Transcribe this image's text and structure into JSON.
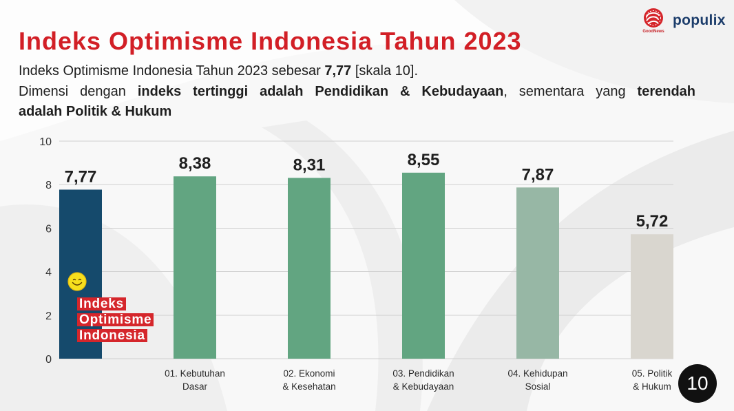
{
  "slide": {
    "title": "Indeks Optimisme Indonesia Tahun 2023",
    "page_number": "10"
  },
  "summary": {
    "line1": [
      "Indeks Optimisme Indonesia Tahun 2023 sebesar ",
      "7,77",
      " [skala 10]."
    ],
    "line2": [
      "Dimensi dengan ",
      "indeks tertinggi adalah Pendidikan & Kebudayaan",
      ", sementara yang ",
      "terendah"
    ],
    "line3": [
      "adalah Politik & Hukum"
    ]
  },
  "logos": {
    "goodnews": "GoodNews",
    "populix": "populix"
  },
  "icons": {
    "overall_index_marker": "smiley-icon",
    "goodnews_mark": "goodnews-logo-icon"
  },
  "colors": {
    "title": "#d21f26",
    "label_badge": "#d5262b",
    "page_badge": "#111111",
    "populix": "#1c3d6b",
    "smiley": "#f6df1d"
  },
  "chart_data": {
    "type": "bar",
    "categories": [
      [
        "Indeks",
        "Optimisme",
        "Indonesia"
      ],
      [
        "01. Kebutuhan",
        "Dasar"
      ],
      [
        "02. Ekonomi",
        "& Kesehatan"
      ],
      [
        "03. Pendidikan",
        "& Kebudayaan"
      ],
      [
        "04. Kehidupan",
        "Sosial"
      ],
      [
        "05. Politik",
        "& Hukum"
      ]
    ],
    "values": [
      7.77,
      8.38,
      8.31,
      8.55,
      7.87,
      5.72
    ],
    "colors": [
      "#154a6c",
      "#62a581",
      "#62a581",
      "#62a581",
      "#97b7a5",
      "#d9d6cf"
    ],
    "ylim": [
      0,
      10
    ],
    "yticks": [
      0,
      2,
      4,
      6,
      8,
      10
    ],
    "grid": true,
    "legend": "none"
  }
}
